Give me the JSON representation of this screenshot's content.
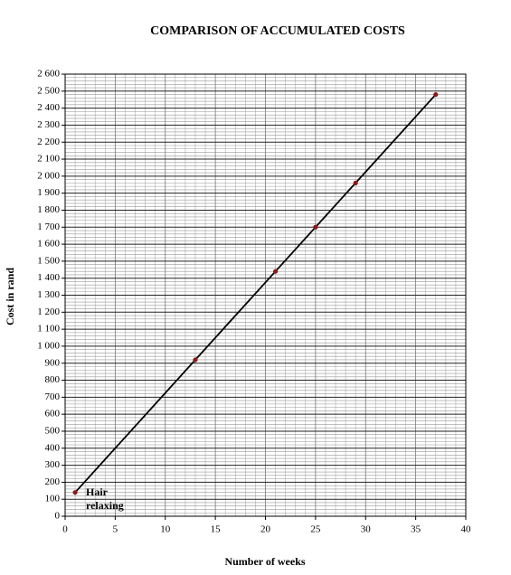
{
  "chart_data": {
    "type": "line",
    "title": "COMPARISON OF ACCUMULATED COSTS",
    "x_label": "Number of weeks",
    "y_label": "Cost in rand",
    "annotation": "Hair relaxing",
    "series": [
      {
        "name": "Hair relaxing",
        "color": "#000000",
        "marker_color": "#8b1a1a",
        "x": [
          1,
          13,
          21,
          25,
          29,
          37
        ],
        "values": [
          140,
          920,
          1440,
          1700,
          1960,
          2480
        ]
      }
    ],
    "xlim": [
      0,
      40
    ],
    "xticks": [
      0,
      5,
      10,
      15,
      20,
      25,
      30,
      35,
      40
    ],
    "ylim": [
      0,
      2600
    ],
    "yticks": [
      0,
      100,
      200,
      300,
      400,
      500,
      600,
      700,
      800,
      900,
      {
        "value": 1000,
        "label": "1 000"
      },
      {
        "value": 1100,
        "label": "1 100"
      },
      {
        "value": 1200,
        "label": "1 200"
      },
      {
        "value": 1300,
        "label": "1 300"
      },
      {
        "value": 1400,
        "label": "1 400"
      },
      {
        "value": 1500,
        "label": "1 500"
      },
      {
        "value": 1600,
        "label": "1 600"
      },
      {
        "value": 1700,
        "label": "1 700"
      },
      {
        "value": 1800,
        "label": "1 800"
      },
      {
        "value": 1900,
        "label": "1 900"
      },
      {
        "value": 2000,
        "label": "2 000"
      },
      {
        "value": 2100,
        "label": "2 100"
      },
      {
        "value": 2200,
        "label": "2 200"
      },
      {
        "value": 2300,
        "label": "2 300"
      },
      {
        "value": 2400,
        "label": "2 400"
      },
      {
        "value": 2500,
        "label": "2 500"
      },
      {
        "value": 2600,
        "label": "2 600"
      }
    ],
    "grid": true,
    "minor_grid": true
  }
}
